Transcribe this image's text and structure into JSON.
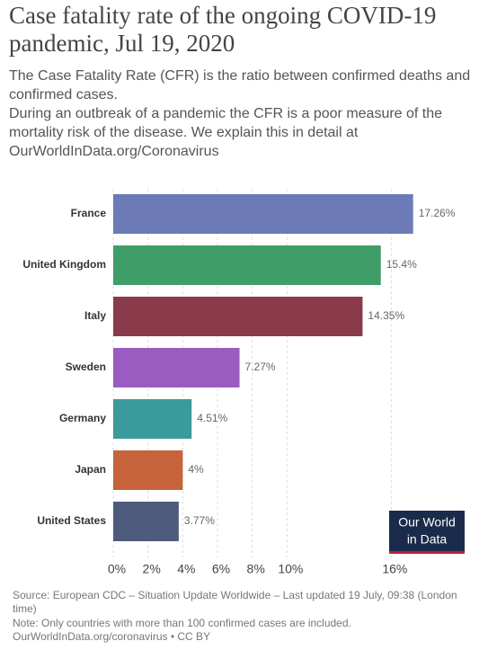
{
  "chart_data": {
    "type": "barh",
    "title": "Case fatality rate of the ongoing COVID-19 pandemic, Jul 19, 2020",
    "subtitle": [
      "The Case Fatality Rate (CFR) is the ratio between confirmed deaths and confirmed cases.",
      "During an outbreak of a pandemic the CFR is a poor measure of the mortality risk of the disease. We explain this in detail at OurWorldInData.org/Coronavirus"
    ],
    "categories": [
      "France",
      "United Kingdom",
      "Italy",
      "Sweden",
      "Germany",
      "Japan",
      "United States"
    ],
    "values": [
      17.26,
      15.4,
      14.35,
      7.27,
      4.51,
      4,
      3.77
    ],
    "value_labels": [
      "17.26%",
      "15.4%",
      "14.35%",
      "7.27%",
      "4.51%",
      "4%",
      "3.77%"
    ],
    "colors": [
      "#6c7bb6",
      "#3f9e68",
      "#8a3a4b",
      "#9a5cc0",
      "#3b9a9b",
      "#c6633a",
      "#4f5b7c"
    ],
    "xlim": [
      0,
      18
    ],
    "xticks": [
      {
        "value": 0,
        "label": "0%"
      },
      {
        "value": 2,
        "label": "2%"
      },
      {
        "value": 4,
        "label": "4%"
      },
      {
        "value": 6,
        "label": "6%"
      },
      {
        "value": 8,
        "label": "8%"
      },
      {
        "value": 10,
        "label": "10%"
      },
      {
        "value": 16,
        "label": "16%"
      }
    ],
    "grid": true,
    "logo": [
      "Our World",
      "in Data"
    ],
    "source": "Source: European CDC – Situation Update Worldwide – Last updated 19 July, 09:38 (London time)",
    "note": "Note: Only countries with more than 100 confirmed cases are included.",
    "footer": "OurWorldInData.org/coronavirus • CC BY"
  }
}
